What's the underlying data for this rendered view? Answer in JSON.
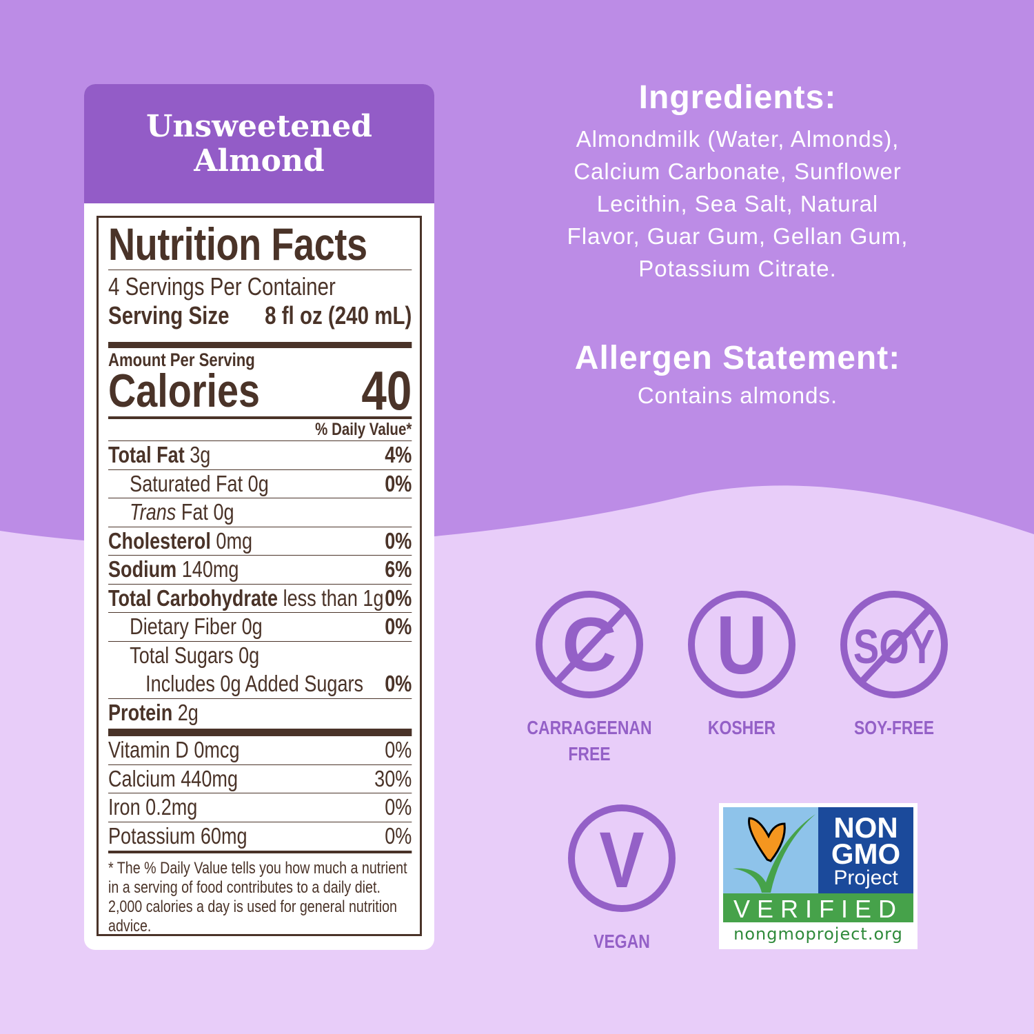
{
  "colors": {
    "bg_top": "#bc8ce6",
    "bg_bottom": "#e8cdf9",
    "header": "#935cc7",
    "label_text": "#4a3328",
    "icon": "#9460c7"
  },
  "card": {
    "flavor_line1": "Unsweetened",
    "flavor_line2": "Almond"
  },
  "nutrition": {
    "title": "Nutrition Facts",
    "servings": "4 Servings Per Container",
    "serving_size_label": "Serving Size",
    "serving_size_value": "8 fl oz (240 mL)",
    "amount_per_serving": "Amount Per Serving",
    "calories_label": "Calories",
    "calories_value": "40",
    "dv_header": "% Daily Value*",
    "rows": [
      {
        "name": "Total Fat",
        "amount": "3g",
        "dv": "4%"
      },
      {
        "name": "Saturated Fat",
        "amount": "0g",
        "dv": "0%"
      },
      {
        "name": "Trans",
        "name_rest": "Fat 0g",
        "dv": ""
      },
      {
        "name": "Cholesterol",
        "amount": "0mg",
        "dv": "0%"
      },
      {
        "name": "Sodium",
        "amount": "140mg",
        "dv": "6%"
      },
      {
        "name": "Total Carbohydrate",
        "amount": "less than 1g",
        "dv": "0%"
      },
      {
        "name": "Dietary Fiber",
        "amount": "0g",
        "dv": "0%"
      },
      {
        "name": "Total Sugars",
        "amount": "0g",
        "dv": ""
      },
      {
        "name": "Includes 0g Added Sugars",
        "amount": "",
        "dv": "0%"
      },
      {
        "name": "Protein",
        "amount": "2g",
        "dv": ""
      }
    ],
    "vitamins": [
      {
        "text": "Vitamin D 0mcg",
        "dv": "0%"
      },
      {
        "text": "Calcium 440mg",
        "dv": "30%"
      },
      {
        "text": "Iron 0.2mg",
        "dv": "0%"
      },
      {
        "text": "Potassium 60mg",
        "dv": "0%"
      }
    ],
    "footnote": "* The % Daily Value tells you how much a nutrient in a serving of food contributes to a daily diet. 2,000 calories a day is used for general nutrition advice."
  },
  "ingredients": {
    "title": "Ingredients:",
    "lines": [
      "Almondmilk (Water, Almonds),",
      "Calcium Carbonate, Sunflower",
      "Lecithin, Sea Salt, Natural",
      "Flavor, Guar Gum, Gellan Gum,",
      "Potassium Citrate."
    ]
  },
  "allergen": {
    "title": "Allergen Statement:",
    "text": "Contains almonds."
  },
  "badges": {
    "carrageenan_1": "CARRAGEENAN",
    "carrageenan_2": "FREE",
    "kosher": "KOSHER",
    "soy_free": "SOY-FREE",
    "vegan": "VEGAN",
    "kosher_glyph": "U",
    "vegan_glyph": "V",
    "soy_glyph": "SOY",
    "carrageenan_glyph": "C"
  },
  "nongmo": {
    "line1": "NON",
    "line2": "GMO",
    "line3": "Project",
    "verified": "VERIFIED",
    "url": "nongmoproject.org"
  }
}
